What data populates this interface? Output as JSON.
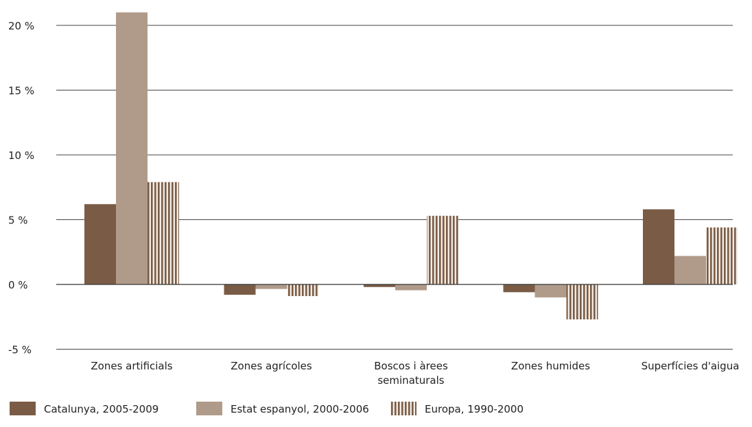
{
  "chart_data": {
    "type": "bar",
    "title": "",
    "xlabel": "",
    "ylabel": "",
    "categories": [
      [
        "Zones artificials"
      ],
      [
        "Zones agrícoles"
      ],
      [
        "Boscos i àrees",
        "seminaturals"
      ],
      [
        "Zones humides"
      ],
      [
        "Superfícies d'aigua"
      ]
    ],
    "ylim": [
      -5,
      20
    ],
    "ytick_values": [
      20,
      15,
      10,
      5,
      0,
      -5
    ],
    "ytick_labels": [
      "20 %",
      "15 %",
      "10 %",
      "5 %",
      "0 %",
      "-5 %"
    ],
    "grid": true,
    "legend_position": "bottom",
    "series": [
      {
        "name": "Catalunya, 2005-2009",
        "color": "#7a5c46",
        "pattern": "solid",
        "values": [
          6.2,
          -0.8,
          -0.2,
          -0.6,
          5.8
        ]
      },
      {
        "name": "Estat espanyol, 2000-2006",
        "color": "#b09b8a",
        "pattern": "solid",
        "values": [
          21.0,
          -0.35,
          -0.45,
          -1.0,
          2.2
        ]
      },
      {
        "name": "Europa, 1990-2000",
        "color": "#7a5c46",
        "pattern": "vertical-stripes",
        "values": [
          7.9,
          -0.9,
          5.3,
          -2.7,
          4.4
        ]
      }
    ]
  }
}
